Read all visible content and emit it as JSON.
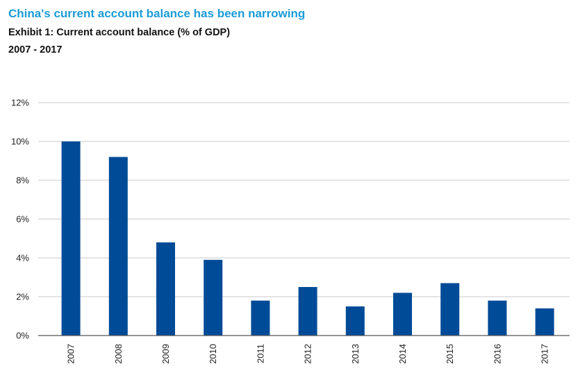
{
  "header": {
    "title": "China's current account balance has been narrowing",
    "subtitle": "Exhibit 1: Current account balance (% of GDP)",
    "period": "2007 - 2017"
  },
  "colors": {
    "title": "#1a9bd7",
    "bar": "#004b97",
    "grid": "#c8c8c8",
    "axis": "#555555"
  },
  "chart_data": {
    "type": "bar",
    "title": "China's current account balance has been narrowing",
    "subtitle": "Exhibit 1: Current account balance (% of GDP)",
    "xlabel": "",
    "ylabel": "",
    "categories": [
      "2007",
      "2008",
      "2009",
      "2010",
      "2011",
      "2012",
      "2013",
      "2014",
      "2015",
      "2016",
      "2017"
    ],
    "values": [
      10.0,
      9.2,
      4.8,
      3.9,
      1.8,
      2.5,
      1.5,
      2.2,
      2.7,
      1.8,
      1.4
    ],
    "ylim": [
      0,
      12
    ],
    "yticks": [
      0,
      2,
      4,
      6,
      8,
      10,
      12
    ],
    "ytick_labels": [
      "0%",
      "2%",
      "4%",
      "6%",
      "8%",
      "10%",
      "12%"
    ],
    "grid": true,
    "legend": "none"
  }
}
